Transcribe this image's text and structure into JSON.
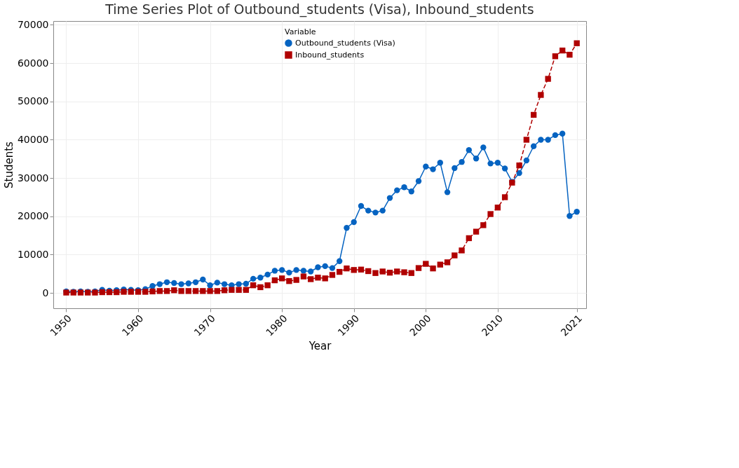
{
  "chart_data": {
    "type": "line",
    "title": "Time Series Plot of Outbound_students (Visa), Inbound_students",
    "xlabel": "Year",
    "ylabel": "Students",
    "legend_title": "Variable",
    "x": [
      1950,
      1951,
      1952,
      1953,
      1954,
      1955,
      1956,
      1957,
      1958,
      1959,
      1960,
      1961,
      1962,
      1963,
      1964,
      1965,
      1966,
      1967,
      1968,
      1969,
      1970,
      1971,
      1972,
      1973,
      1974,
      1975,
      1976,
      1977,
      1978,
      1979,
      1980,
      1981,
      1982,
      1983,
      1984,
      1985,
      1986,
      1987,
      1988,
      1989,
      1990,
      1991,
      1992,
      1993,
      1994,
      1995,
      1996,
      1997,
      1998,
      1999,
      2000,
      2001,
      2002,
      2003,
      2004,
      2005,
      2006,
      2007,
      2008,
      2009,
      2010,
      2011,
      2012,
      2013,
      2014,
      2015,
      2016,
      2017,
      2018,
      2019,
      2020,
      2021
    ],
    "series": [
      {
        "name": "Outbound_students (Visa)",
        "color": "#0563c1",
        "marker": "circle",
        "line_style": "solid",
        "values": [
          400,
          300,
          400,
          300,
          400,
          800,
          600,
          700,
          900,
          800,
          700,
          1000,
          1800,
          2300,
          2800,
          2600,
          2300,
          2500,
          2800,
          3500,
          2000,
          2700,
          2300,
          2000,
          2300,
          2400,
          3700,
          4000,
          4800,
          5800,
          6000,
          5300,
          6000,
          5800,
          5600,
          6700,
          7000,
          6500,
          8300,
          17000,
          18500,
          22700,
          21500,
          21000,
          21500,
          24800,
          26800,
          27600,
          26500,
          29200,
          33000,
          32300,
          34000,
          26300,
          32600,
          34200,
          37300,
          35100,
          38000,
          33800,
          34000,
          32500,
          29000,
          31300,
          34600,
          38300,
          40000,
          40000,
          41200,
          41600,
          20100,
          21200
        ]
      },
      {
        "name": "Inbound_students",
        "color": "#b00000",
        "marker": "square",
        "line_style": "dashed",
        "values": [
          100,
          100,
          100,
          100,
          100,
          200,
          200,
          200,
          300,
          300,
          300,
          300,
          400,
          500,
          500,
          700,
          500,
          500,
          500,
          500,
          500,
          500,
          700,
          800,
          800,
          800,
          2000,
          1500,
          2000,
          3300,
          3800,
          3100,
          3400,
          4300,
          3600,
          4000,
          3800,
          4700,
          5500,
          6400,
          6000,
          6100,
          5700,
          5200,
          5600,
          5300,
          5600,
          5400,
          5200,
          6500,
          7600,
          6400,
          7400,
          8000,
          9800,
          11100,
          14300,
          16000,
          17700,
          20600,
          22300,
          25000,
          28800,
          33300,
          40000,
          46500,
          51700,
          55900,
          61800,
          63300,
          62200,
          65200
        ]
      }
    ],
    "xlim": [
      1948.2,
      2022.3
    ],
    "xticks": [
      1950,
      1960,
      1970,
      1980,
      1990,
      2000,
      2010,
      2021
    ],
    "ylim": [
      -4000,
      71000
    ],
    "yticks": [
      0,
      10000,
      20000,
      30000,
      40000,
      50000,
      60000,
      70000
    ],
    "grid": true,
    "legend": "top"
  }
}
